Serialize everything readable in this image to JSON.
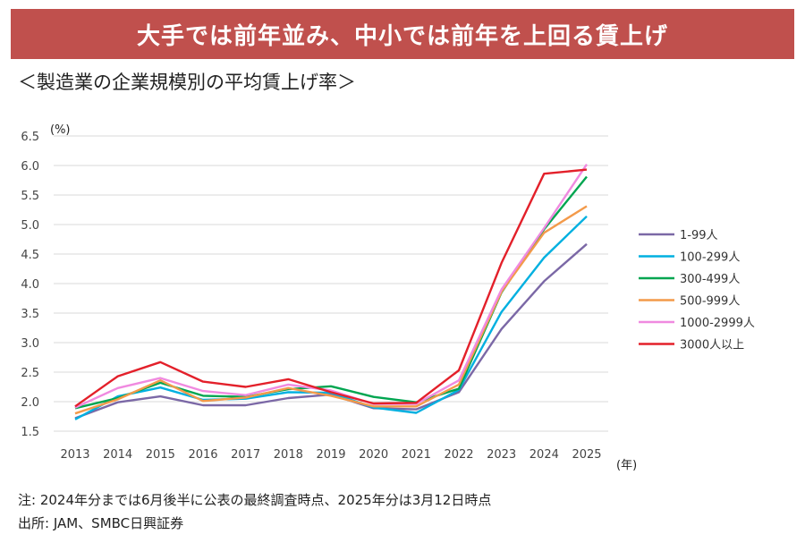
{
  "banner": {
    "text": "大手では前年並み、中小では前年を上回る賃上げ"
  },
  "subtitle": "＜製造業の企業規模別の平均賃上げ率＞",
  "notes": {
    "note": "注: 2024年分までは6月後半に公表の最終調査時点、2025年分は3月12日時点",
    "source": "出所: JAM、SMBC日興証券"
  },
  "chart_data": {
    "type": "line",
    "y_unit_label": "(%)",
    "x_unit_label": "(年)",
    "ylim": [
      1.5,
      6.5
    ],
    "y_ticks": [
      "1.5",
      "2.0",
      "2.5",
      "3.0",
      "3.5",
      "4.0",
      "4.5",
      "5.0",
      "5.5",
      "6.0",
      "6.5"
    ],
    "grid": true,
    "legend_position": "right",
    "categories": [
      "2013",
      "2014",
      "2015",
      "2016",
      "2017",
      "2018",
      "2019",
      "2020",
      "2021",
      "2022",
      "2023",
      "2024",
      "2025"
    ],
    "series": [
      {
        "name": "1-99人",
        "color": "#7b68a6",
        "values": [
          1.72,
          1.99,
          2.09,
          1.94,
          1.94,
          2.06,
          2.12,
          1.89,
          1.87,
          2.16,
          3.23,
          4.04,
          4.67
        ]
      },
      {
        "name": "100-299人",
        "color": "#00b0e0",
        "values": [
          1.7,
          2.09,
          2.24,
          2.03,
          2.05,
          2.16,
          2.15,
          1.9,
          1.81,
          2.2,
          3.52,
          4.44,
          5.14
        ]
      },
      {
        "name": "300-499人",
        "color": "#00a550",
        "values": [
          1.89,
          2.06,
          2.32,
          2.1,
          2.08,
          2.21,
          2.26,
          2.08,
          1.99,
          2.22,
          3.85,
          4.92,
          5.81
        ]
      },
      {
        "name": "500-999人",
        "color": "#f39a4a",
        "values": [
          1.8,
          2.04,
          2.36,
          2.01,
          2.07,
          2.23,
          2.1,
          1.92,
          1.92,
          2.29,
          3.86,
          4.86,
          5.31
        ]
      },
      {
        "name": "1000-2999人",
        "color": "#f08ae0",
        "values": [
          1.9,
          2.23,
          2.4,
          2.18,
          2.11,
          2.29,
          2.19,
          1.96,
          1.96,
          2.36,
          3.9,
          4.94,
          6.02
        ]
      },
      {
        "name": "3000人以上",
        "color": "#e3202a",
        "values": [
          1.92,
          2.43,
          2.67,
          2.34,
          2.25,
          2.38,
          2.16,
          1.97,
          1.98,
          2.53,
          4.35,
          5.86,
          5.93
        ]
      }
    ]
  }
}
